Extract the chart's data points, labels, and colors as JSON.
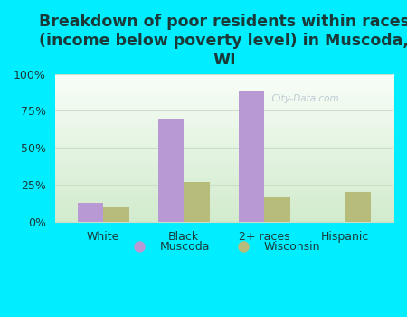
{
  "title": "Breakdown of poor residents within races\n(income below poverty level) in Muscoda,\nWI",
  "categories": [
    "White",
    "Black",
    "2+ races",
    "Hispanic"
  ],
  "muscoda_values": [
    13,
    70,
    88,
    0
  ],
  "wisconsin_values": [
    10,
    27,
    17,
    20
  ],
  "muscoda_color": "#b899d4",
  "wisconsin_color": "#b8bc7a",
  "background_outer": "#00eeff",
  "background_inner_top": "#f8fef8",
  "background_inner_bottom": "#d8f0d0",
  "ylim": [
    0,
    100
  ],
  "yticks": [
    0,
    25,
    50,
    75,
    100
  ],
  "ytick_labels": [
    "0%",
    "25%",
    "50%",
    "75%",
    "100%"
  ],
  "bar_width": 0.32,
  "title_fontsize": 12.5,
  "title_color": "#1a3a3a",
  "tick_color": "#1a3a3a",
  "legend_labels": [
    "Muscoda",
    "Wisconsin"
  ],
  "grid_color": "#ccddcc"
}
